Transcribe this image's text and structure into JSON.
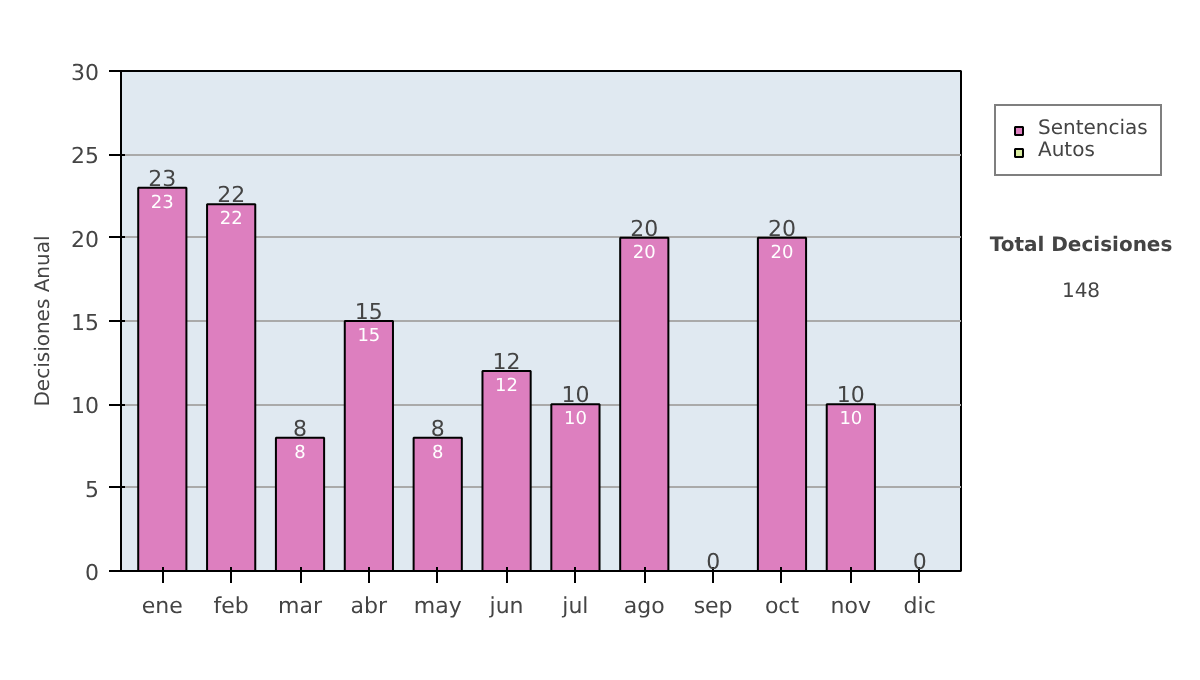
{
  "chart_data": {
    "type": "bar",
    "stacked": true,
    "ylabel": "Decisiones Anual",
    "categories": [
      "ene",
      "feb",
      "mar",
      "abr",
      "may",
      "jun",
      "jul",
      "ago",
      "sep",
      "oct",
      "nov",
      "dic"
    ],
    "series": [
      {
        "name": "Sentencias",
        "color": "#dd7fbf",
        "values": [
          23,
          22,
          8,
          15,
          8,
          12,
          10,
          20,
          0,
          20,
          10,
          0
        ],
        "value_labels": [
          "23",
          "22",
          "8",
          "15",
          "8",
          "12",
          "10",
          "20",
          null,
          "20",
          "10",
          null
        ]
      },
      {
        "name": "Autos",
        "color": "#d9eca0",
        "values": [
          0,
          0,
          0,
          0,
          0,
          0,
          0,
          0,
          0,
          0,
          0,
          0
        ]
      }
    ],
    "totals": [
      "23",
      "22",
      "8",
      "15",
      "8",
      "12",
      "10",
      "20",
      "0",
      "20",
      "10",
      "0"
    ],
    "ylim": [
      0,
      30
    ],
    "yticks": [
      0,
      5,
      10,
      15,
      20,
      25,
      30
    ],
    "grid": "y",
    "legend": "right",
    "annotations": [
      "Total Decisiones",
      "148"
    ]
  }
}
